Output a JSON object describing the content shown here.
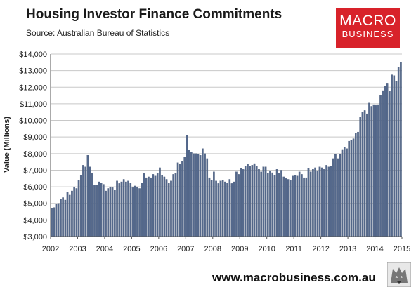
{
  "header": {
    "title": "Housing Investor Finance Commitments",
    "subtitle": "Source: Australian Bureau of Statistics"
  },
  "logo": {
    "line1": "MACRO",
    "line2": "BUSINESS"
  },
  "footer": {
    "url": "www.macrobusiness.com.au"
  },
  "colors": {
    "bar": "#55698c",
    "bar_edge": "#3e5070",
    "grid": "#c8c8c8",
    "brand_red": "#d8222a"
  },
  "icons": {
    "corner": "wolf-logo-icon"
  },
  "chart_data": {
    "type": "bar",
    "title": "Housing Investor Finance Commitments",
    "subtitle": "Source: Australian Bureau of Statistics",
    "xlabel": "",
    "ylabel": "Value (Millions)",
    "ylim": [
      3000,
      14000
    ],
    "yticks": [
      "$3,000",
      "$4,000",
      "$5,000",
      "$6,000",
      "$7,000",
      "$8,000",
      "$9,000",
      "$10,000",
      "$11,000",
      "$12,000",
      "$13,000",
      "$14,000"
    ],
    "xticks": [
      "2002",
      "2003",
      "2004",
      "2005",
      "2006",
      "2007",
      "2008",
      "2009",
      "2010",
      "2011",
      "2012",
      "2013",
      "2014",
      "2015"
    ],
    "grid": "horizontal",
    "legend": "none",
    "frequency": "monthly",
    "start": "2002-01",
    "series": [
      {
        "values": [
          4700,
          4750,
          4950,
          5000,
          5250,
          5350,
          5200,
          5700,
          5500,
          5750,
          6000,
          5900,
          6400,
          6700,
          7300,
          7200,
          7900,
          7200,
          6800,
          6100,
          6100,
          6300,
          6250,
          6150,
          5750,
          5900,
          6000,
          5950,
          5800,
          6350,
          6200,
          6300,
          6450,
          6300,
          6350,
          6250,
          5950,
          6050,
          6000,
          5900,
          6250,
          6800,
          6550,
          6600,
          6550,
          6750,
          6650,
          6800,
          7150,
          6700,
          6600,
          6450,
          6250,
          6350,
          6750,
          6800,
          7450,
          7350,
          7550,
          7800,
          9100,
          8200,
          8100,
          8000,
          8000,
          7950,
          7900,
          8300,
          8000,
          7700,
          6550,
          6400,
          6900,
          6350,
          6200,
          6350,
          6400,
          6300,
          6250,
          6450,
          6200,
          6300,
          6900,
          6750,
          7100,
          7050,
          7250,
          7350,
          7250,
          7300,
          7400,
          7250,
          7050,
          6900,
          7200,
          7200,
          6800,
          6950,
          6850,
          6700,
          7050,
          6800,
          7000,
          6600,
          6500,
          6450,
          6400,
          6650,
          6700,
          6650,
          6900,
          6750,
          6550,
          6550,
          7100,
          6900,
          7050,
          7150,
          6950,
          7200,
          7150,
          7050,
          7300,
          7200,
          7250,
          7700,
          7950,
          7700,
          7950,
          8250,
          8400,
          8300,
          8750,
          8800,
          8900,
          9250,
          9300,
          10200,
          10500,
          10600,
          10400,
          11050,
          10850,
          10950,
          10900,
          10950,
          11500,
          11800,
          12050,
          12250,
          11750,
          12750,
          12700,
          12350,
          13200,
          13500
        ]
      }
    ]
  }
}
